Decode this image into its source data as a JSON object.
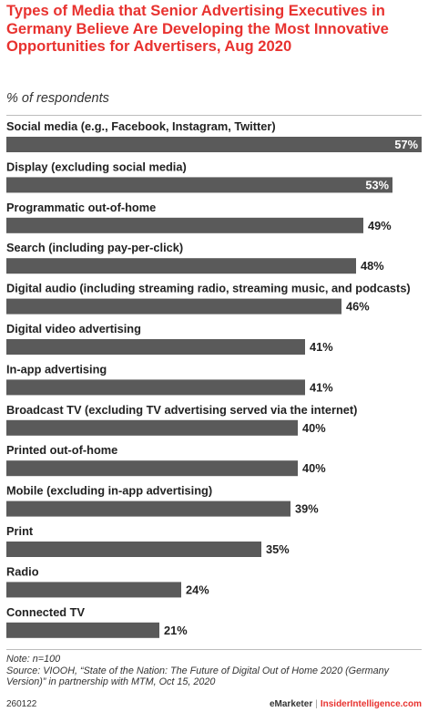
{
  "header": {
    "title": "Types of Media that Senior Advertising Executives in Germany Believe Are Developing the Most Innovative Opportunities for Advertisers, Aug 2020",
    "subtitle": "% of respondents"
  },
  "chart_data": {
    "type": "bar",
    "orientation": "horizontal",
    "categories": [
      "Social media (e.g., Facebook, Instagram, Twitter)",
      "Display (excluding social media)",
      "Programmatic out-of-home",
      "Search (including pay-per-click)",
      "Digital audio (including streaming radio, streaming music, and podcasts)",
      "Digital video advertising",
      "In-app advertising",
      "Broadcast TV (excluding TV advertising served via the internet)",
      "Printed out-of-home",
      "Mobile (excluding in-app advertising)",
      "Print",
      "Radio",
      "Connected TV"
    ],
    "values": [
      57,
      53,
      49,
      48,
      46,
      41,
      41,
      40,
      40,
      39,
      35,
      24,
      21
    ],
    "value_labels": [
      "57%",
      "53%",
      "49%",
      "48%",
      "46%",
      "41%",
      "41%",
      "40%",
      "40%",
      "39%",
      "35%",
      "24%",
      "21%"
    ],
    "xlim": [
      0,
      57
    ],
    "bar_color": "#5a5a5a",
    "grid": false,
    "legend": "none"
  },
  "notes": {
    "note": "Note: n=100",
    "source": "Source: VIOOH, “State of the Nation: The Future of Digital Out of Home 2020 (Germany Version)” in partnership with MTM, Oct 15, 2020"
  },
  "footer": {
    "chart_id": "260122",
    "brand_left": "eMarketer",
    "separator": "|",
    "brand_right": "InsiderIntelligence.com"
  },
  "colors": {
    "title": "#e8322f",
    "bar": "#5a5a5a",
    "label_inside": "#ffffff",
    "label_outside": "#222222"
  }
}
